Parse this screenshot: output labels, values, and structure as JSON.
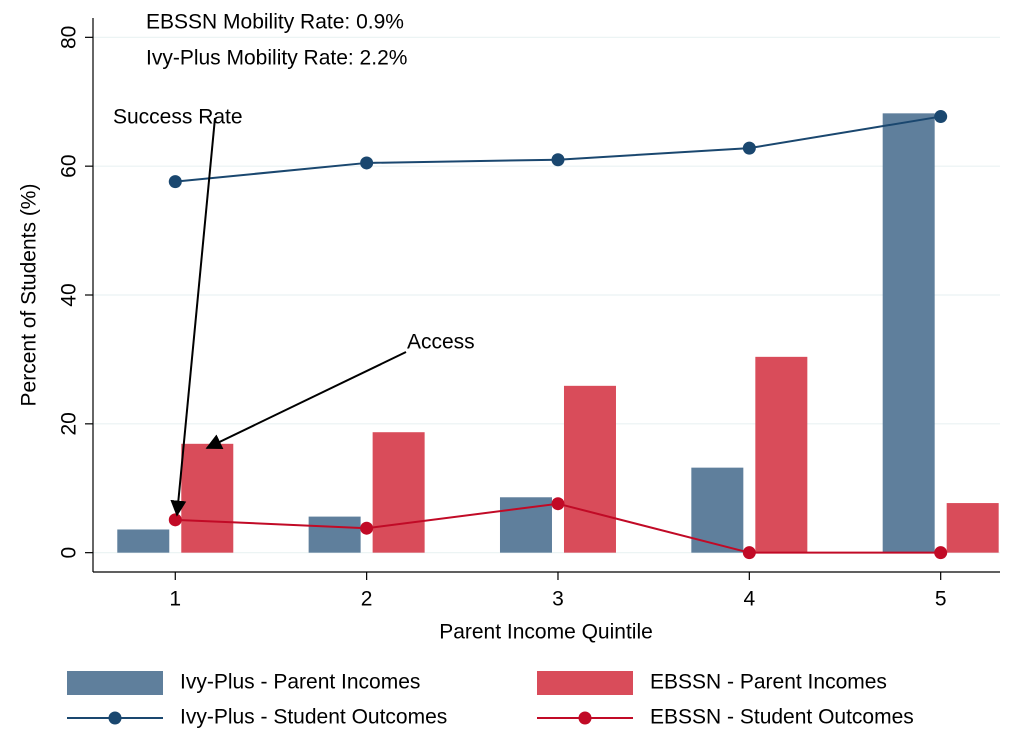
{
  "chart_data": {
    "type": "combo",
    "x_label": "Parent Income Quintile",
    "y_label": "Percent of Students (%)",
    "x": [
      1,
      2,
      3,
      4,
      5
    ],
    "xlim": [
      0.57,
      5.31
    ],
    "xticks": [
      1,
      2,
      3,
      4,
      5
    ],
    "ylim": [
      -3,
      83
    ],
    "yticks": [
      0,
      20,
      40,
      60,
      80
    ],
    "grid": true,
    "annotations": [
      "EBSSN Mobility Rate:  0.9%",
      "Ivy-Plus Mobility Rate:   2.2%",
      "Success Rate",
      "Access"
    ],
    "series": [
      {
        "name": "Ivy-Plus - Parent Incomes",
        "type": "bar",
        "color": "#5f7f9c",
        "values": [
          3.6,
          5.6,
          8.6,
          13.2,
          68.2
        ]
      },
      {
        "name": "EBSSN - Parent Incomes",
        "type": "bar",
        "color": "#d94c5a",
        "values": [
          16.9,
          18.7,
          25.9,
          30.4,
          7.7
        ]
      },
      {
        "name": "Ivy-Plus - Student Outcomes",
        "type": "line",
        "color": "#1a476f",
        "values": [
          57.6,
          60.5,
          61.0,
          62.8,
          67.7
        ]
      },
      {
        "name": "EBSSN - Student Outcomes",
        "type": "line",
        "color": "#c10a26",
        "values": [
          5.1,
          3.8,
          7.6,
          0,
          0
        ]
      }
    ]
  }
}
